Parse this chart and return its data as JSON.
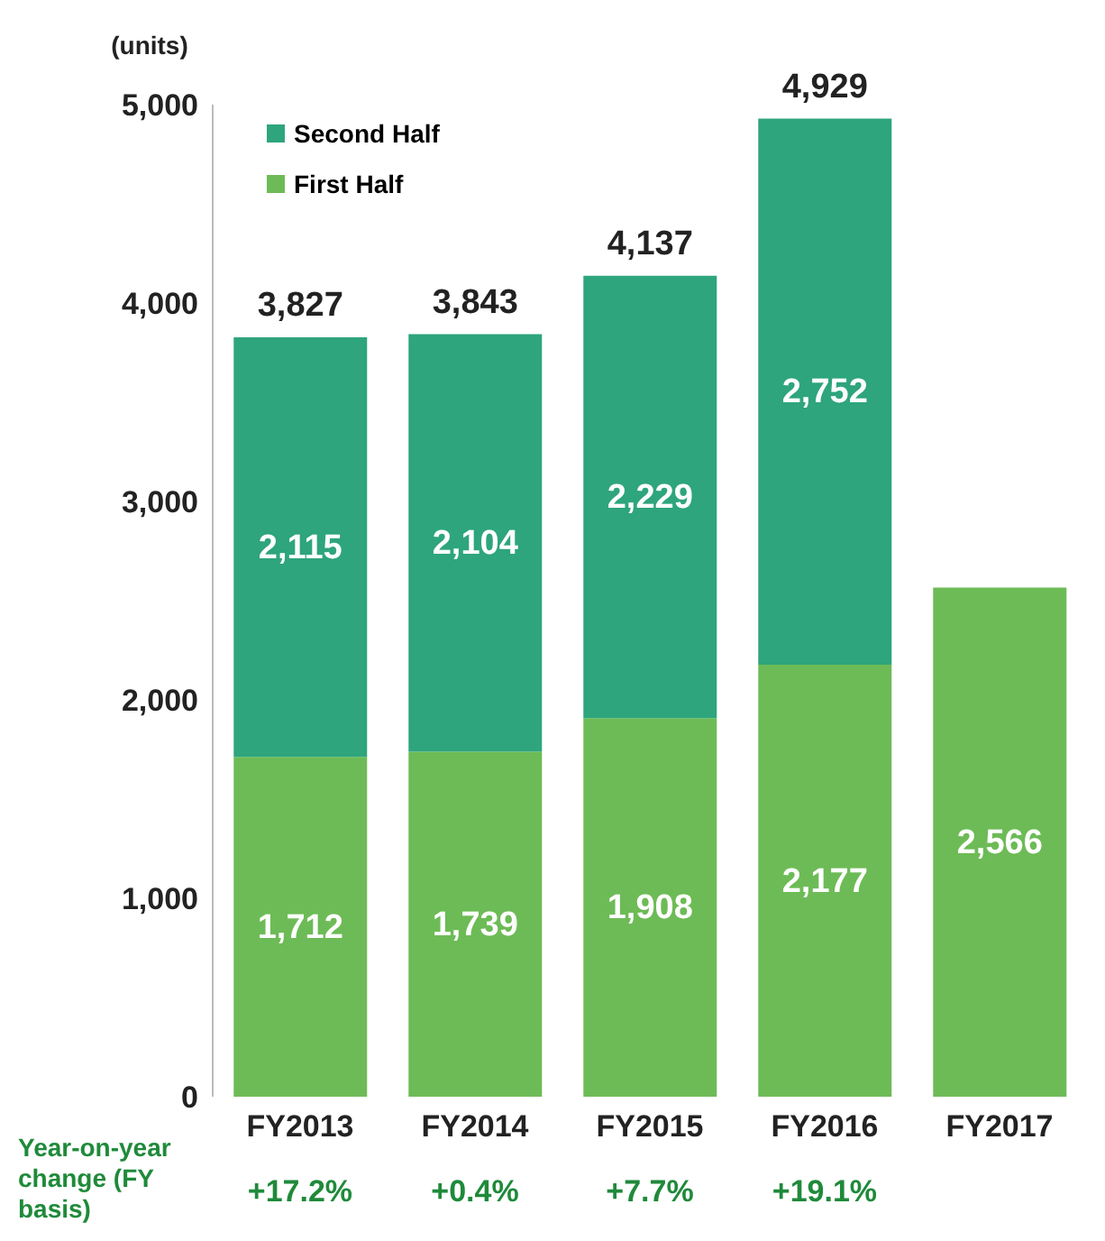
{
  "chart_data": {
    "type": "bar",
    "stacked": true,
    "ylabel": "(units)",
    "categories": [
      "FY2013",
      "FY2014",
      "FY2015",
      "FY2016",
      "FY2017"
    ],
    "series": [
      {
        "name": "First Half",
        "color": "#6dbb56",
        "values": [
          1712,
          1739,
          1908,
          2177,
          2566
        ],
        "value_labels": [
          "1,712",
          "1,739",
          "1,908",
          "2,177",
          "2,566"
        ]
      },
      {
        "name": "Second Half",
        "color": "#2ea57c",
        "values": [
          2115,
          2104,
          2229,
          2752,
          null
        ],
        "value_labels": [
          "2,115",
          "2,104",
          "2,229",
          "2,752",
          null
        ]
      }
    ],
    "totals": [
      "3,827",
      "3,843",
      "4,137",
      "4,929",
      null
    ],
    "ylim": [
      0,
      5000
    ],
    "yticks": [
      {
        "value": 0,
        "label": "0"
      },
      {
        "value": 1000,
        "label": "1,000"
      },
      {
        "value": 2000,
        "label": "2,000"
      },
      {
        "value": 3000,
        "label": "3,000"
      },
      {
        "value": 4000,
        "label": "4,000"
      },
      {
        "value": 5000,
        "label": "5,000"
      }
    ],
    "grid": false,
    "legend": "top left",
    "annotations": [
      "Year-on-year change (FY basis)",
      "+17.2%",
      "+0.4%",
      "+7.7%",
      "+19.1%"
    ]
  }
}
